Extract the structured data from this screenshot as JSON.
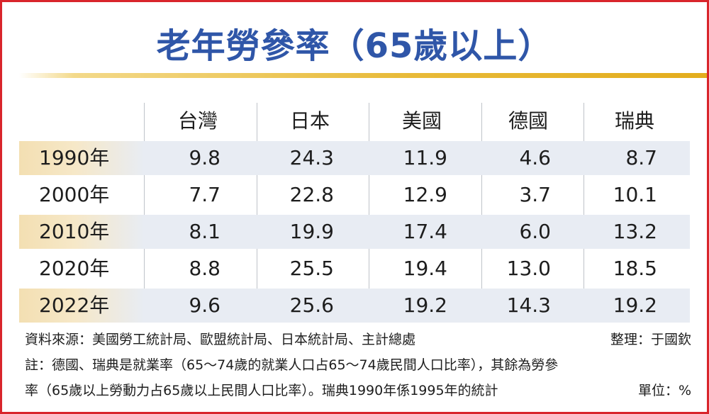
{
  "title": "老年勞參率（65歲以上）",
  "chart_data": {
    "type": "table",
    "columns": [
      "台灣",
      "日本",
      "美國",
      "德國",
      "瑞典"
    ],
    "rows": [
      {
        "year": "1990年",
        "values": [
          "9.8",
          "24.3",
          "11.9",
          "4.6",
          "8.7"
        ]
      },
      {
        "year": "2000年",
        "values": [
          "7.7",
          "22.8",
          "12.9",
          "3.7",
          "10.1"
        ]
      },
      {
        "year": "2010年",
        "values": [
          "8.1",
          "19.9",
          "17.4",
          "6.0",
          "13.2"
        ]
      },
      {
        "year": "2020年",
        "values": [
          "8.8",
          "25.5",
          "19.4",
          "13.0",
          "18.5"
        ]
      },
      {
        "year": "2022年",
        "values": [
          "9.6",
          "25.6",
          "19.2",
          "14.3",
          "19.2"
        ]
      }
    ]
  },
  "notes": {
    "source": "資料來源：美國勞工統計局、歐盟統計局、日本統計局、主計總處",
    "editor": "整理：于國欽",
    "note_line1": "註：德國、瑞典是就業率（65～74歲的就業人口占65～74歲民間人口比率），其餘為勞參",
    "note_line2": "率（65歲以上勞動力占65歲以上民間人口比率）。瑞典1990年係1995年的統計",
    "unit": "單位：%"
  },
  "colors": {
    "border": "#d9252b",
    "title": "#2f56a8",
    "gold_line": "#e3ad1d",
    "row_shade": "#e8ecf3",
    "year_shade": "#f3dfb2"
  }
}
